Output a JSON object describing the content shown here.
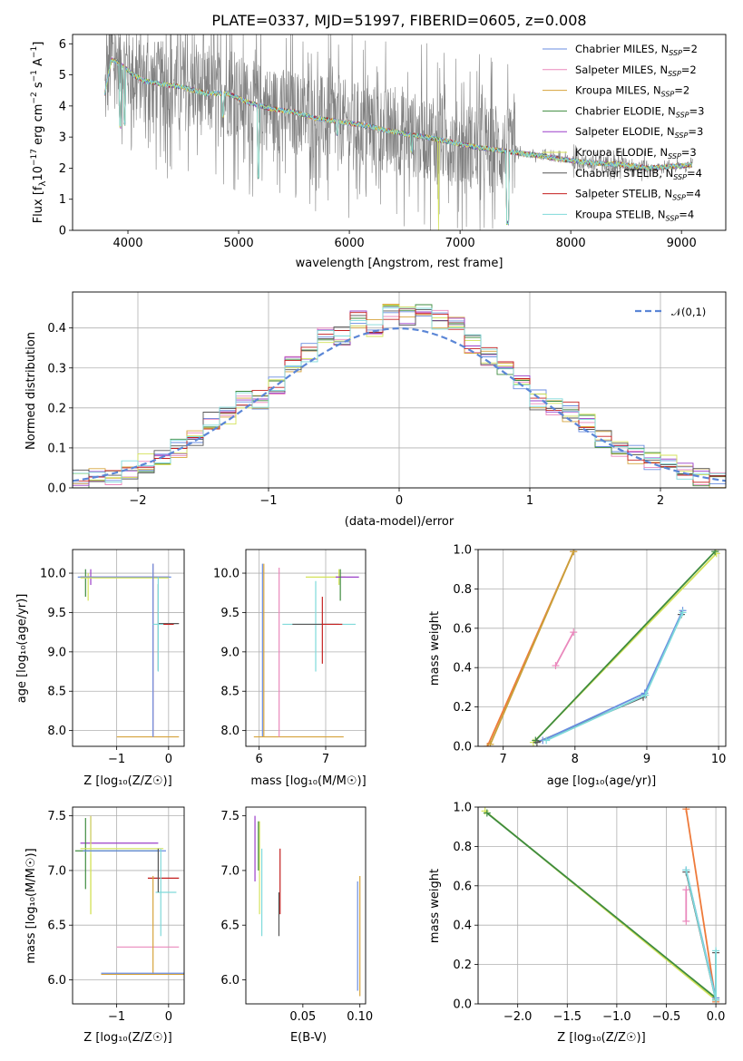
{
  "figure": {
    "title": "PLATE=0337, MJD=51997, FIBERID=0605, z=0.008"
  },
  "legend_models": [
    {
      "name": "Chabrier MILES",
      "nssp": "2",
      "color": "#6a8de0"
    },
    {
      "name": "Salpeter MILES",
      "nssp": "2",
      "color": "#ea88bc"
    },
    {
      "name": "Kroupa MILES",
      "nssp": "2",
      "color": "#d6a33c"
    },
    {
      "name": "Chabrier ELODIE",
      "nssp": "3",
      "color": "#3f8c3f"
    },
    {
      "name": "Salpeter ELODIE",
      "nssp": "3",
      "color": "#9b3fc8"
    },
    {
      "name": "Kroupa ELODIE",
      "nssp": "3",
      "color": "#d4e25a"
    },
    {
      "name": "Chabrier STELIB",
      "nssp": "4",
      "color": "#555555"
    },
    {
      "name": "Salpeter STELIB",
      "nssp": "4",
      "color": "#c41f1f"
    },
    {
      "name": "Kroupa STELIB",
      "nssp": "4",
      "color": "#7fdada"
    }
  ],
  "chart_data": [
    {
      "id": "spectrum",
      "type": "line",
      "title": "PLATE=0337, MJD=51997, FIBERID=0605, z=0.008",
      "xlabel": "wavelength [Angstrom, rest frame]",
      "ylabel": "Flux [f_λ 10^-17 erg cm^-2 s^-1 A^-1]",
      "xlim": [
        3500,
        9400
      ],
      "ylim": [
        0,
        6.3
      ],
      "xticks": [
        4000,
        5000,
        6000,
        7000,
        8000,
        9000
      ],
      "yticks": [
        0,
        1,
        2,
        3,
        4,
        5,
        6
      ],
      "data_color": "#808080",
      "model_continuum": {
        "x": [
          3790,
          3850,
          3950,
          4050,
          4150,
          4300,
          4500,
          4700,
          4900,
          5100,
          5300,
          5500,
          5700,
          5900,
          6100,
          6300,
          6500,
          6700,
          6900,
          7100,
          7300,
          7500,
          7700,
          7900,
          8100,
          8300,
          8500,
          8700,
          8900,
          9100
        ],
        "y": [
          4.4,
          5.5,
          5.3,
          5.0,
          4.8,
          4.7,
          4.6,
          4.4,
          4.4,
          4.1,
          3.9,
          3.8,
          3.6,
          3.5,
          3.4,
          3.25,
          3.1,
          3.0,
          2.85,
          2.7,
          2.6,
          2.5,
          2.4,
          2.3,
          2.2,
          2.15,
          2.1,
          2.0,
          2.05,
          2.1
        ]
      },
      "grid": false,
      "legend_position": "upper right"
    },
    {
      "id": "residuals",
      "type": "histogram",
      "xlabel": "(data-model)/error",
      "ylabel": "Normed distribution",
      "xlim": [
        -2.5,
        2.5
      ],
      "ylim": [
        0,
        0.49
      ],
      "xticks": [
        -2,
        -1,
        0,
        1,
        2
      ],
      "yticks": [
        0.0,
        0.1,
        0.2,
        0.3,
        0.4
      ],
      "bin_edges": [
        -2.5,
        -2.375,
        -2.25,
        -2.125,
        -2.0,
        -1.875,
        -1.75,
        -1.625,
        -1.5,
        -1.375,
        -1.25,
        -1.125,
        -1.0,
        -0.875,
        -0.75,
        -0.625,
        -0.5,
        -0.375,
        -0.25,
        -0.125,
        0.0,
        0.125,
        0.25,
        0.375,
        0.5,
        0.625,
        0.75,
        0.875,
        1.0,
        1.125,
        1.25,
        1.375,
        1.5,
        1.625,
        1.75,
        1.875,
        2.0,
        2.125,
        2.25,
        2.375,
        2.5
      ],
      "base_values": [
        0.02,
        0.025,
        0.03,
        0.045,
        0.06,
        0.075,
        0.1,
        0.125,
        0.165,
        0.18,
        0.22,
        0.22,
        0.255,
        0.31,
        0.34,
        0.38,
        0.38,
        0.42,
        0.4,
        0.44,
        0.43,
        0.44,
        0.42,
        0.41,
        0.36,
        0.33,
        0.3,
        0.26,
        0.22,
        0.2,
        0.19,
        0.16,
        0.12,
        0.1,
        0.085,
        0.07,
        0.06,
        0.045,
        0.03,
        0.02
      ],
      "reference": {
        "label": "𝒩(0,1)",
        "color": "#5b86d6",
        "style": "dashed",
        "mu": 0,
        "sigma": 1
      },
      "grid": true,
      "legend_position": "upper right"
    },
    {
      "id": "age-vs-Z",
      "type": "errorbar",
      "xlabel": "Z [log₁₀(Z/Z☉)]",
      "ylabel": "age  [log₁₀(age/yr)]",
      "xlim": [
        -1.85,
        0.3
      ],
      "ylim": [
        7.8,
        10.3
      ],
      "xticks": [
        -1,
        0
      ],
      "yticks": [
        8.0,
        8.5,
        9.0,
        9.5,
        10.0
      ],
      "grid": true
    },
    {
      "id": "age-vs-mass",
      "type": "errorbar",
      "xlabel": "mass [log₁₀(M/M☉)]",
      "ylabel": "",
      "xlim": [
        5.8,
        7.6
      ],
      "ylim": [
        7.8,
        10.3
      ],
      "xticks": [
        6,
        7
      ],
      "yticks": [
        8.0,
        8.5,
        9.0,
        9.5,
        10.0
      ],
      "grid": true
    },
    {
      "id": "weight-vs-age",
      "type": "line",
      "xlabel": "age  [log₁₀(age/yr)]",
      "ylabel": "mass weight",
      "xlim": [
        6.65,
        10.1
      ],
      "ylim": [
        0,
        1.0
      ],
      "xticks": [
        7,
        8,
        9,
        10
      ],
      "yticks": [
        0.0,
        0.2,
        0.4,
        0.6,
        0.8,
        1.0
      ],
      "series": [
        {
          "color": "#ee7a3a",
          "x": [
            6.78,
            7.98
          ],
          "y": [
            0.0,
            0.99
          ]
        },
        {
          "color": "#c9a13a",
          "x": [
            6.82,
            7.98
          ],
          "y": [
            0.01,
            0.99
          ]
        },
        {
          "color": "#ea88bc",
          "x": [
            7.73,
            7.98
          ],
          "y": [
            0.41,
            0.58
          ]
        },
        {
          "color": "#d4e25a",
          "x": [
            7.42,
            9.97
          ],
          "y": [
            0.02,
            0.98
          ]
        },
        {
          "color": "#3f8c3f",
          "x": [
            7.45,
            9.95
          ],
          "y": [
            0.03,
            0.99
          ]
        },
        {
          "color": "#555555",
          "x": [
            7.47,
            8.95,
            9.48
          ],
          "y": [
            0.02,
            0.25,
            0.67
          ]
        },
        {
          "color": "#6a8de0",
          "x": [
            7.55,
            8.97,
            9.5
          ],
          "y": [
            0.03,
            0.27,
            0.69
          ]
        },
        {
          "color": "#7fdada",
          "x": [
            7.6,
            8.98,
            9.5
          ],
          "y": [
            0.03,
            0.26,
            0.68
          ]
        }
      ],
      "grid": true
    },
    {
      "id": "mass-vs-Z",
      "type": "errorbar",
      "xlabel": "Z [log₁₀(Z/Z☉)]",
      "ylabel": "mass [log₁₀(M/M☉)]",
      "xlim": [
        -1.85,
        0.3
      ],
      "ylim": [
        5.78,
        7.58
      ],
      "xticks": [
        -1,
        0
      ],
      "yticks": [
        6.0,
        6.5,
        7.0,
        7.5
      ],
      "grid": true
    },
    {
      "id": "mass-vs-ebv",
      "type": "errorbar",
      "xlabel": "E(B-V)",
      "ylabel": "",
      "xlim": [
        0.0,
        0.105
      ],
      "ylim": [
        5.78,
        7.58
      ],
      "xticks": [
        0.05,
        0.1
      ],
      "yticks": [
        6.0,
        6.5,
        7.0,
        7.5
      ],
      "grid": false
    },
    {
      "id": "weight-vs-Z",
      "type": "line",
      "xlabel": "Z [log₁₀(Z/Z☉)]",
      "ylabel": "mass weight",
      "xlim": [
        -2.4,
        0.1
      ],
      "ylim": [
        0,
        1.0
      ],
      "xticks": [
        -2.0,
        -1.5,
        -1.0,
        -0.5,
        0.0
      ],
      "yticks": [
        0.0,
        0.2,
        0.4,
        0.6,
        0.8,
        1.0
      ],
      "series": [
        {
          "color": "#d4e25a",
          "x": [
            -2.33,
            0.0
          ],
          "y": [
            0.98,
            0.02
          ]
        },
        {
          "color": "#3f8c3f",
          "x": [
            -2.31,
            0.0
          ],
          "y": [
            0.97,
            0.03
          ]
        },
        {
          "color": "#ee7a3a",
          "x": [
            -0.3,
            0.0
          ],
          "y": [
            0.99,
            0.01
          ]
        },
        {
          "color": "#ea88bc",
          "x": [
            -0.3,
            -0.3
          ],
          "y": [
            0.42,
            0.58
          ]
        },
        {
          "color": "#555555",
          "x": [
            -0.3,
            0.0,
            0.0
          ],
          "y": [
            0.67,
            0.02,
            0.26
          ]
        },
        {
          "color": "#6a8de0",
          "x": [
            -0.3,
            0.0
          ],
          "y": [
            0.68,
            0.03
          ]
        },
        {
          "color": "#7fdada",
          "x": [
            -0.3,
            0.0,
            0.0
          ],
          "y": [
            0.68,
            0.02,
            0.27
          ]
        }
      ],
      "grid": true
    }
  ]
}
